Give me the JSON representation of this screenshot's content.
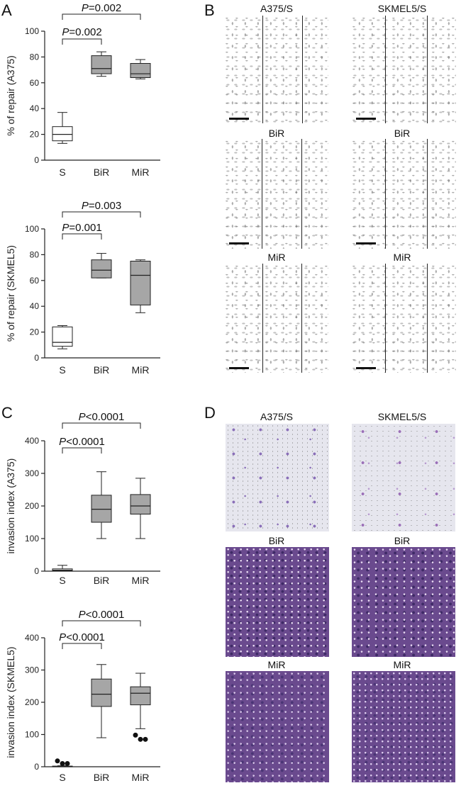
{
  "panels": {
    "A": "A",
    "B": "B",
    "C": "C",
    "D": "D"
  },
  "chart_data": [
    {
      "id": "A-top",
      "type": "box",
      "ylabel": "% of repair (A375)",
      "ylim": [
        0,
        100
      ],
      "yticks": [
        0,
        20,
        40,
        60,
        80,
        100
      ],
      "categories": [
        "S",
        "BiR",
        "MiR"
      ],
      "boxes": [
        {
          "category": "S",
          "min": 13,
          "q1": 15,
          "median": 20,
          "q3": 26,
          "max": 37,
          "fill": "#ffffff"
        },
        {
          "category": "BiR",
          "min": 65,
          "q1": 67,
          "median": 71,
          "q3": 81,
          "max": 84,
          "fill": "#a6a6a6"
        },
        {
          "category": "MiR",
          "min": 63,
          "q1": 64,
          "median": 67,
          "q3": 75,
          "max": 78,
          "fill": "#a6a6a6"
        }
      ],
      "annotations": [
        {
          "from": "S",
          "to": "BiR",
          "text_italic": "P",
          "text": "=0.002",
          "level": 1
        },
        {
          "from": "S",
          "to": "MiR",
          "text_italic": "P",
          "text": "=0.002",
          "level": 2
        }
      ]
    },
    {
      "id": "A-bottom",
      "type": "box",
      "ylabel": "% of repair (SKMEL5)",
      "ylim": [
        0,
        100
      ],
      "yticks": [
        0,
        20,
        40,
        60,
        80,
        100
      ],
      "categories": [
        "S",
        "BiR",
        "MiR"
      ],
      "boxes": [
        {
          "category": "S",
          "min": 7,
          "q1": 9,
          "median": 12,
          "q3": 24,
          "max": 25,
          "fill": "#ffffff"
        },
        {
          "category": "BiR",
          "min": 62,
          "q1": 62,
          "median": 68,
          "q3": 76,
          "max": 81,
          "fill": "#a6a6a6"
        },
        {
          "category": "MiR",
          "min": 35,
          "q1": 41,
          "median": 64,
          "q3": 75,
          "max": 76,
          "fill": "#a6a6a6"
        }
      ],
      "annotations": [
        {
          "from": "S",
          "to": "BiR",
          "text_italic": "P",
          "text": "=0.001",
          "level": 1
        },
        {
          "from": "S",
          "to": "MiR",
          "text_italic": "P",
          "text": "=0.003",
          "level": 2
        }
      ]
    },
    {
      "id": "C-top",
      "type": "box",
      "ylabel": "invasion index (A375)",
      "ylim": [
        0,
        400
      ],
      "yticks": [
        0,
        100,
        200,
        300,
        400
      ],
      "categories": [
        "S",
        "BiR",
        "MiR"
      ],
      "boxes": [
        {
          "category": "S",
          "min": 0,
          "q1": 1,
          "median": 3,
          "q3": 7,
          "max": 18,
          "fill": "#ffffff"
        },
        {
          "category": "BiR",
          "min": 100,
          "q1": 150,
          "median": 190,
          "q3": 233,
          "max": 305,
          "fill": "#a6a6a6"
        },
        {
          "category": "MiR",
          "min": 100,
          "q1": 175,
          "median": 200,
          "q3": 235,
          "max": 285,
          "fill": "#a6a6a6"
        }
      ],
      "annotations": [
        {
          "from": "S",
          "to": "BiR",
          "text_italic": "P",
          "text": "<0.0001",
          "level": 1
        },
        {
          "from": "S",
          "to": "MiR",
          "text_italic": "P",
          "text": "<0.0001",
          "level": 2
        }
      ]
    },
    {
      "id": "C-bottom",
      "type": "box",
      "ylabel": "invasion index (SKMEL5)",
      "ylim": [
        0,
        400
      ],
      "yticks": [
        0,
        100,
        200,
        300,
        400
      ],
      "categories": [
        "S",
        "BiR",
        "MiR"
      ],
      "boxes": [
        {
          "category": "S",
          "min": 0,
          "q1": 0,
          "median": 1,
          "q3": 2,
          "max": 3,
          "fill": "#ffffff",
          "outliers": [
            18,
            10,
            10
          ]
        },
        {
          "category": "BiR",
          "min": 90,
          "q1": 187,
          "median": 225,
          "q3": 272,
          "max": 317,
          "fill": "#a6a6a6"
        },
        {
          "category": "MiR",
          "min": 118,
          "q1": 192,
          "median": 228,
          "q3": 248,
          "max": 290,
          "fill": "#a6a6a6",
          "outliers": [
            98,
            85,
            85
          ]
        }
      ],
      "annotations": [
        {
          "from": "S",
          "to": "BiR",
          "text_italic": "P",
          "text": "<0.0001",
          "level": 1
        },
        {
          "from": "S",
          "to": "MiR",
          "text_italic": "P",
          "text": "<0.0001",
          "level": 2
        }
      ]
    }
  ],
  "micrographs_B": {
    "columns": [
      {
        "labels": [
          "A375/S",
          "BiR",
          "MiR"
        ]
      },
      {
        "labels": [
          "SKMEL5/S",
          "BiR",
          "MiR"
        ]
      }
    ]
  },
  "micrographs_D": {
    "columns": [
      {
        "labels": [
          "A375/S",
          "BiR",
          "MiR"
        ]
      },
      {
        "labels": [
          "SKMEL5/S",
          "BiR",
          "MiR"
        ]
      }
    ]
  }
}
